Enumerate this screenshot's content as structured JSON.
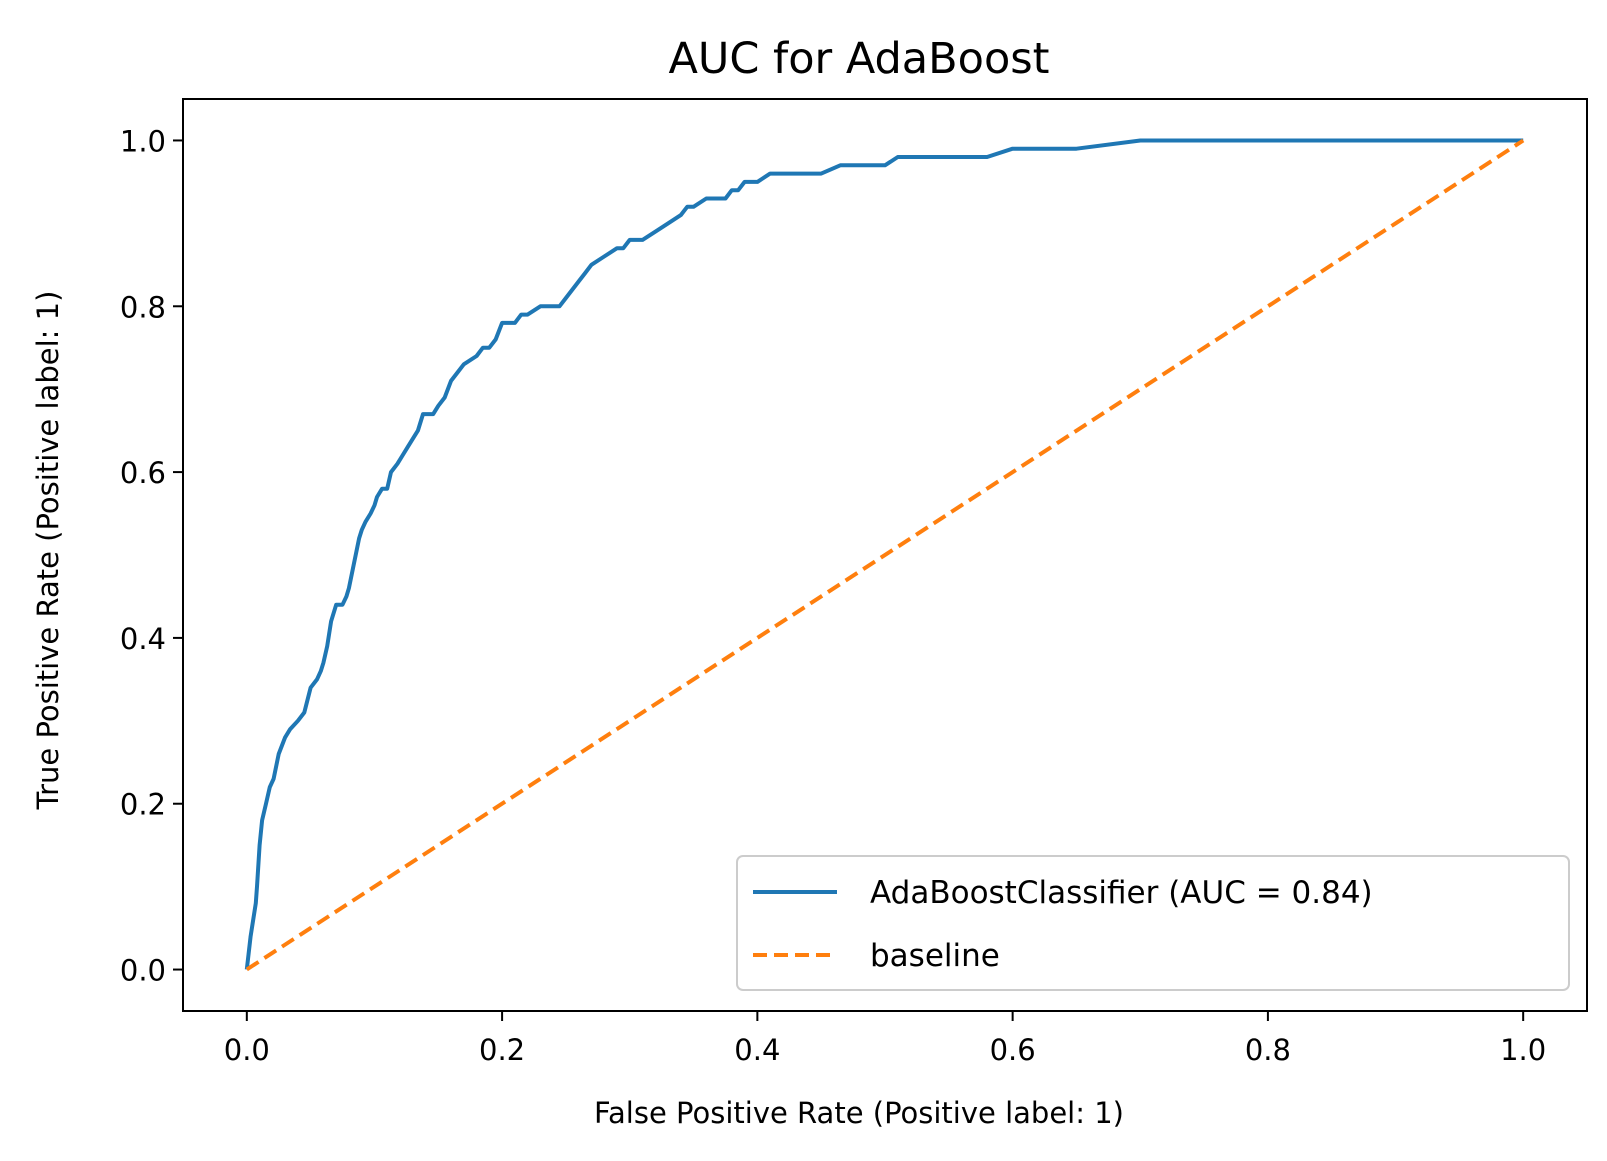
{
  "chart_data": {
    "type": "line",
    "title": "AUC for AdaBoost",
    "xlabel": "False Positive Rate (Positive label: 1)",
    "ylabel": "True Positive Rate (Positive label: 1)",
    "xlim": [
      -0.05,
      1.05
    ],
    "ylim": [
      -0.05,
      1.05
    ],
    "xticks": [
      "0.0",
      "0.2",
      "0.4",
      "0.6",
      "0.8",
      "1.0"
    ],
    "yticks": [
      "0.0",
      "0.2",
      "0.4",
      "0.6",
      "0.8",
      "1.0"
    ],
    "grid": false,
    "legend_position": "lower right",
    "series": [
      {
        "name": "AdaBoostClassifier (AUC = 0.84)",
        "color": "#1f77b4",
        "style": "solid",
        "x": [
          0.0,
          0.003,
          0.004,
          0.007,
          0.008,
          0.01,
          0.012,
          0.015,
          0.018,
          0.021,
          0.025,
          0.03,
          0.034,
          0.04,
          0.045,
          0.05,
          0.055,
          0.058,
          0.06,
          0.063,
          0.066,
          0.07,
          0.074,
          0.075,
          0.078,
          0.08,
          0.088,
          0.09,
          0.093,
          0.097,
          0.1,
          0.102,
          0.106,
          0.11,
          0.113,
          0.118,
          0.122,
          0.126,
          0.13,
          0.134,
          0.138,
          0.142,
          0.146,
          0.15,
          0.155,
          0.16,
          0.165,
          0.17,
          0.18,
          0.185,
          0.19,
          0.195,
          0.2,
          0.21,
          0.215,
          0.22,
          0.23,
          0.24,
          0.245,
          0.25,
          0.26,
          0.265,
          0.27,
          0.28,
          0.29,
          0.295,
          0.3,
          0.31,
          0.32,
          0.33,
          0.34,
          0.345,
          0.35,
          0.36,
          0.37,
          0.375,
          0.38,
          0.385,
          0.39,
          0.4,
          0.41,
          0.42,
          0.45,
          0.465,
          0.48,
          0.49,
          0.5,
          0.51,
          0.52,
          0.58,
          0.6,
          0.63,
          0.65,
          0.7,
          0.72,
          0.75,
          0.8,
          0.87,
          1.0
        ],
        "y": [
          0.0,
          0.04,
          0.05,
          0.08,
          0.1,
          0.15,
          0.18,
          0.2,
          0.22,
          0.23,
          0.26,
          0.28,
          0.29,
          0.3,
          0.31,
          0.34,
          0.35,
          0.36,
          0.37,
          0.39,
          0.42,
          0.44,
          0.44,
          0.44,
          0.45,
          0.46,
          0.52,
          0.53,
          0.54,
          0.55,
          0.56,
          0.57,
          0.58,
          0.58,
          0.6,
          0.61,
          0.62,
          0.63,
          0.64,
          0.65,
          0.67,
          0.67,
          0.67,
          0.68,
          0.69,
          0.71,
          0.72,
          0.73,
          0.74,
          0.75,
          0.75,
          0.76,
          0.78,
          0.78,
          0.79,
          0.79,
          0.8,
          0.8,
          0.8,
          0.81,
          0.83,
          0.84,
          0.85,
          0.86,
          0.87,
          0.87,
          0.88,
          0.88,
          0.89,
          0.9,
          0.91,
          0.92,
          0.92,
          0.93,
          0.93,
          0.93,
          0.94,
          0.94,
          0.95,
          0.95,
          0.96,
          0.96,
          0.96,
          0.97,
          0.97,
          0.97,
          0.97,
          0.98,
          0.98,
          0.98,
          0.99,
          0.99,
          0.99,
          1.0,
          1.0,
          1.0,
          1.0,
          1.0,
          1.0
        ]
      },
      {
        "name": "baseline",
        "color": "#ff7f0e",
        "style": "dashed",
        "x": [
          0.0,
          1.0
        ],
        "y": [
          0.0,
          1.0
        ]
      }
    ]
  }
}
